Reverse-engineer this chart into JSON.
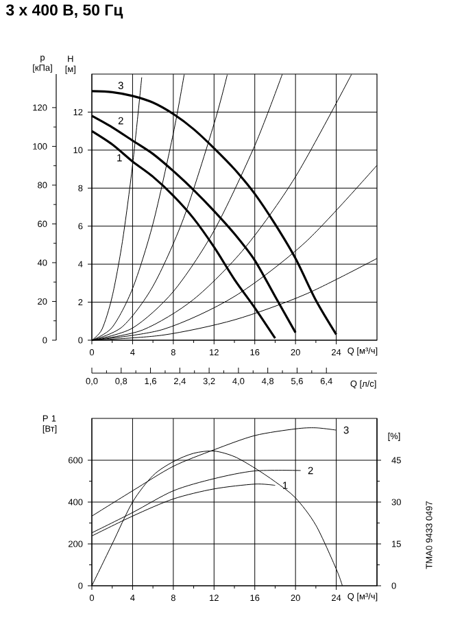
{
  "chart_data": [
    {
      "type": "line",
      "title": "3 x 400 В, 50 Гц",
      "xlabel": "Q [м³/ч]",
      "ylabel": "H [м]",
      "y2label": "p [кПа]",
      "x2label": "Q [л/с]",
      "xlim": [
        0,
        28
      ],
      "ylim": [
        0,
        14
      ],
      "xticks": [
        0,
        4,
        8,
        12,
        16,
        20,
        24
      ],
      "yticks": [
        0,
        2,
        4,
        6,
        8,
        10,
        12
      ],
      "y2lim": [
        0,
        137.3
      ],
      "y2ticks": [
        0,
        20,
        40,
        60,
        80,
        100,
        120
      ],
      "x2lim": [
        0,
        7.78
      ],
      "x2ticks": [
        {
          "value": 0,
          "label": "0,0"
        },
        {
          "value": 0.8,
          "label": "0,8"
        },
        {
          "value": 1.6,
          "label": "1,6"
        },
        {
          "value": 2.4,
          "label": "2,4"
        },
        {
          "value": 3.2,
          "label": "3,2"
        },
        {
          "value": 4.0,
          "label": "4,0"
        },
        {
          "value": 4.8,
          "label": "4,8"
        },
        {
          "value": 5.6,
          "label": "5,6"
        },
        {
          "value": 6.4,
          "label": "6,4"
        }
      ],
      "grid": true,
      "marker": "none",
      "series": [
        {
          "name": "1",
          "color": "#000000",
          "x": [
            0,
            2,
            4,
            6,
            8,
            10,
            12,
            14,
            16,
            18
          ],
          "values": [
            11.0,
            10.3,
            9.4,
            8.6,
            7.6,
            6.4,
            4.9,
            3.2,
            1.7,
            0.1
          ]
        },
        {
          "name": "2",
          "color": "#000000",
          "x": [
            0,
            2,
            4,
            6,
            8,
            10,
            12,
            14,
            16,
            18,
            20
          ],
          "values": [
            11.8,
            11.2,
            10.5,
            9.8,
            8.9,
            7.9,
            6.8,
            5.6,
            4.2,
            2.3,
            0.4
          ]
        },
        {
          "name": "3",
          "color": "#000000",
          "x": [
            0,
            2,
            4,
            6,
            8,
            10,
            12,
            14,
            16,
            18,
            20,
            22,
            24
          ],
          "values": [
            13.1,
            13.05,
            12.85,
            12.5,
            11.9,
            11.1,
            10.1,
            9.0,
            7.7,
            6.1,
            4.3,
            2.1,
            0.3
          ]
        },
        {
          "color": "#000000",
          "x": [
            0,
            1,
            2,
            3,
            4,
            4.9
          ],
          "values": [
            0,
            0.58,
            2.3,
            5.18,
            9.22,
            13.83
          ]
        },
        {
          "color": "#000000",
          "x": [
            0,
            2,
            4,
            6,
            8,
            9.07
          ],
          "values": [
            0,
            0.68,
            2.72,
            6.12,
            10.88,
            13.98
          ]
        },
        {
          "color": "#000000",
          "x": [
            0,
            3,
            6,
            9,
            12,
            13.3
          ],
          "values": [
            0,
            0.71,
            2.84,
            6.4,
            11.38,
            13.97
          ]
        },
        {
          "color": "#000000",
          "x": [
            0,
            4,
            8,
            12,
            16,
            18.7
          ],
          "values": [
            0,
            0.64,
            2.56,
            5.76,
            10.24,
            13.99
          ]
        },
        {
          "color": "#000000",
          "x": [
            0,
            5,
            10,
            15,
            20,
            25.5
          ],
          "values": [
            0,
            0.54,
            2.15,
            4.84,
            8.6,
            13.98
          ]
        },
        {
          "color": "#000000",
          "x": [
            0,
            7,
            14,
            21,
            28
          ],
          "values": [
            0,
            0.57,
            2.3,
            5.17,
            9.2
          ]
        },
        {
          "color": "#000000",
          "x": [
            0,
            7,
            14,
            21,
            28
          ],
          "values": [
            0,
            0.27,
            1.07,
            2.42,
            4.3
          ]
        }
      ]
    },
    {
      "type": "line",
      "xlabel": "Q [м³/ч]",
      "ylabel": "P 1 [Вт]",
      "y2label": "[%]",
      "xlim": [
        0,
        28
      ],
      "ylim": [
        0,
        800
      ],
      "xticks": [
        0,
        4,
        8,
        12,
        16,
        20,
        24
      ],
      "yticks": [
        0,
        200,
        400,
        600
      ],
      "y2lim": [
        0,
        60
      ],
      "y2ticks": [
        0,
        15,
        30,
        45
      ],
      "grid": true,
      "marker": "none",
      "series": [
        {
          "name": "1",
          "color": "#000000",
          "x": [
            0,
            4,
            8,
            12,
            16,
            18
          ],
          "values": [
            238,
            333,
            415,
            463,
            486,
            480
          ]
        },
        {
          "name": "2",
          "color": "#000000",
          "x": [
            0,
            4,
            8,
            12,
            16,
            20.5
          ],
          "values": [
            253,
            350,
            454,
            512,
            549,
            551
          ]
        },
        {
          "name": "3",
          "color": "#000000",
          "x": [
            0,
            4,
            8,
            12,
            16,
            20,
            22,
            24
          ],
          "values": [
            333,
            454,
            571,
            650,
            718,
            750,
            755,
            744
          ]
        },
        {
          "color": "#000000",
          "axis": "y2",
          "x": [
            0,
            2,
            4,
            6,
            8,
            10,
            12,
            14,
            16,
            18,
            20,
            22,
            24,
            24.6
          ],
          "values": [
            0,
            15,
            30,
            39.5,
            44.5,
            47.5,
            48.3,
            46.3,
            42.2,
            37.3,
            31.5,
            21.7,
            6,
            0
          ]
        }
      ],
      "annotations": [
        "TMA0 9433 0497"
      ]
    }
  ]
}
